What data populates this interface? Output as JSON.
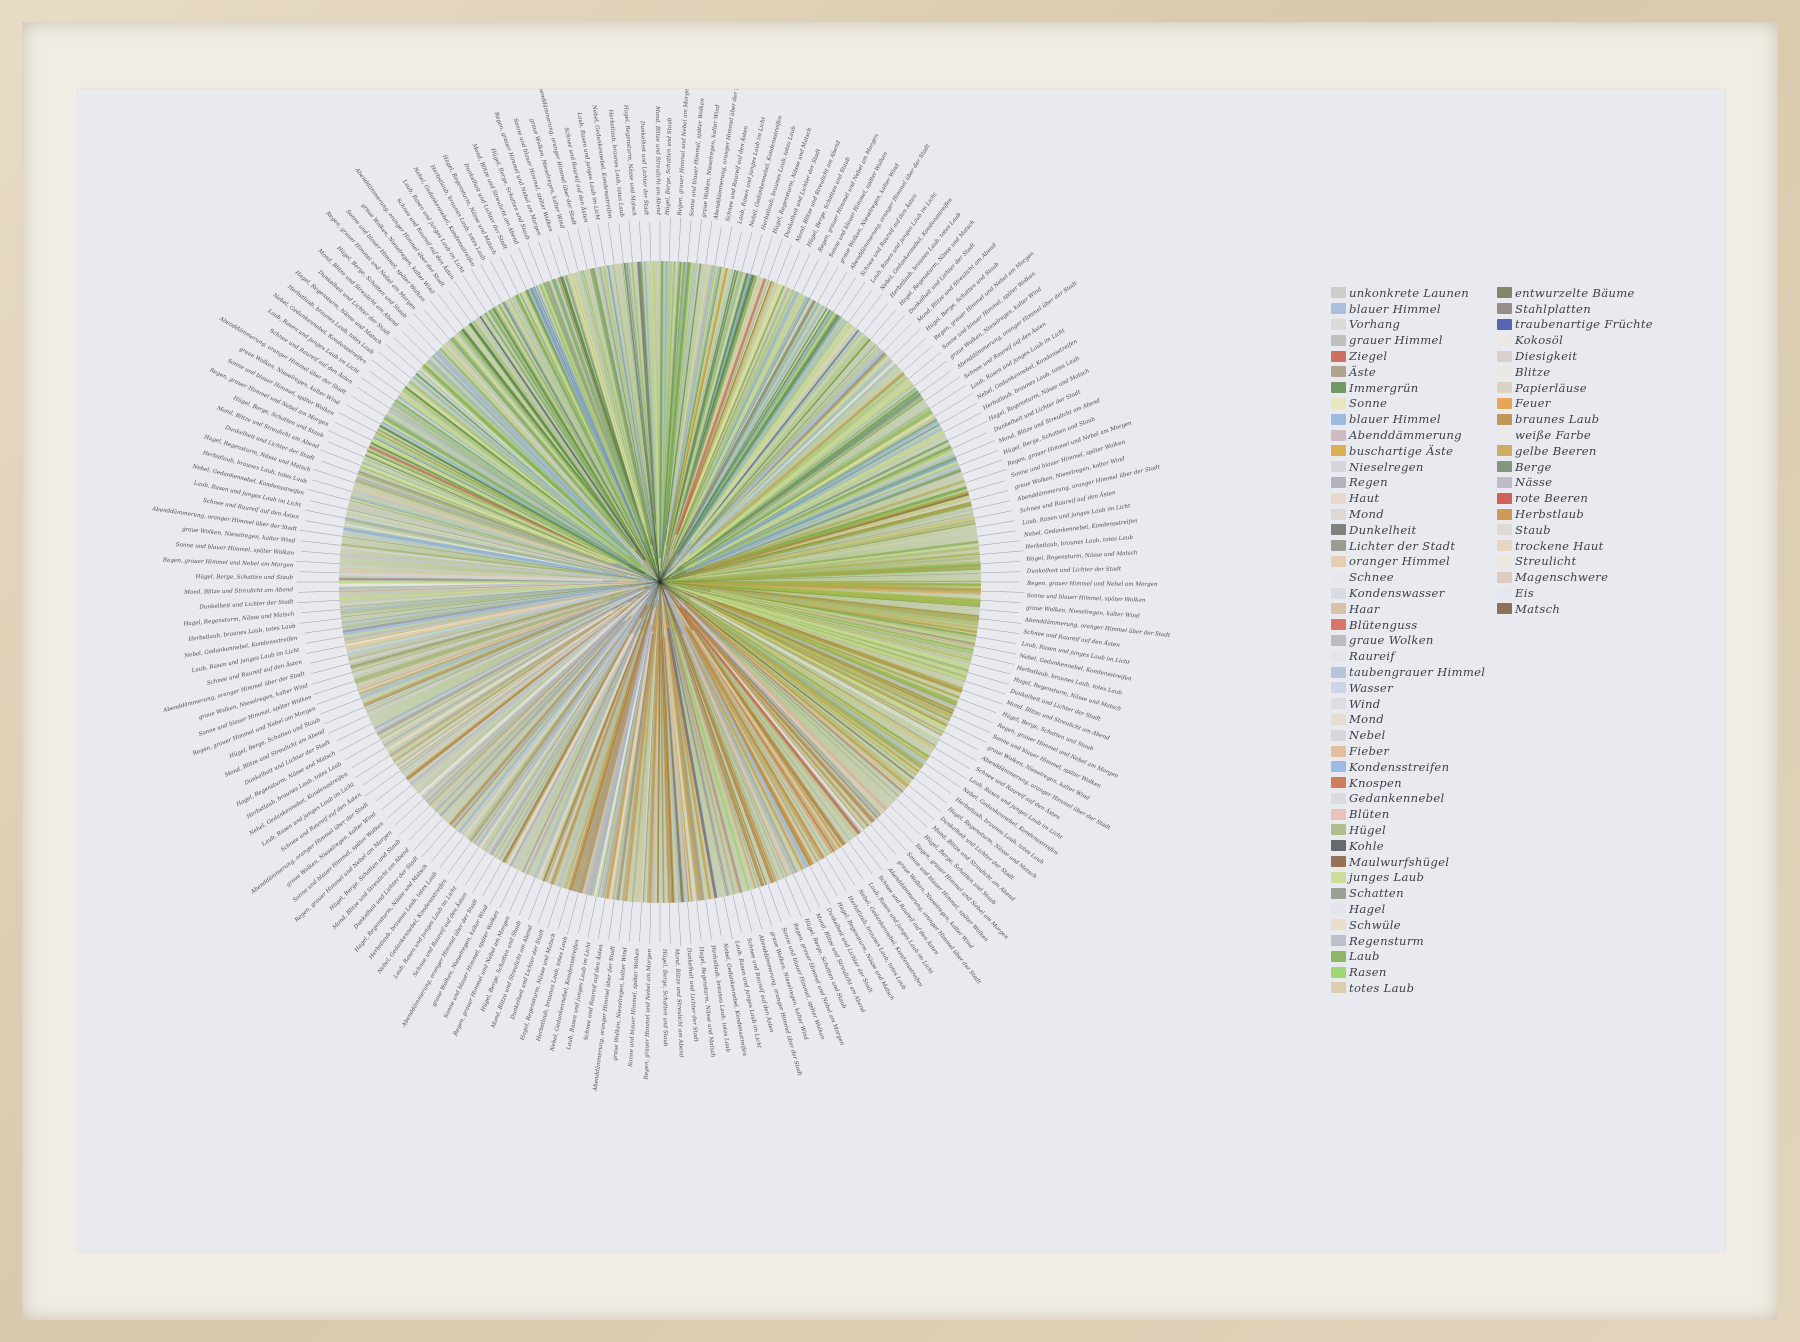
{
  "legend": {
    "column1": [
      {
        "label": "unkonkrete Launen",
        "color": "#c9c7c2"
      },
      {
        "label": "blauer Himmel",
        "color": "#9fb8d6"
      },
      {
        "label": "Vorhang",
        "color": "#d9d7d4"
      },
      {
        "label": "grauer Himmel",
        "color": "#b9b7b4"
      },
      {
        "label": "Ziegel",
        "color": "#c55a4a"
      },
      {
        "label": "Äste",
        "color": "#a6987e"
      },
      {
        "label": "Immergrün",
        "color": "#5d8a4c"
      },
      {
        "label": "Sonne",
        "color": "#e9e4b6"
      },
      {
        "label": "blauer Himmel",
        "color": "#8fb3de"
      },
      {
        "label": "Abenddämmerung",
        "color": "#c8b4b8"
      },
      {
        "label": "buschartige Äste",
        "color": "#d8a63a"
      },
      {
        "label": "Nieselregen",
        "color": "#d2d2d6"
      },
      {
        "label": "Regen",
        "color": "#a9a9b3"
      },
      {
        "label": "Haut",
        "color": "#e8d6c4"
      },
      {
        "label": "Mond",
        "color": "#d9d6cc"
      },
      {
        "label": "Dunkelheit",
        "color": "#6b7068"
      },
      {
        "label": "Lichter der Stadt",
        "color": "#8a8f7e"
      },
      {
        "label": "oranger Himmel",
        "color": "#e8c9a6"
      },
      {
        "label": "Schnee",
        "color": "#e6e8ec"
      },
      {
        "label": "Kondenswasser",
        "color": "#d6d8df"
      },
      {
        "label": "Haar",
        "color": "#d7b79c"
      },
      {
        "label": "Blütenguss",
        "color": "#d26050"
      },
      {
        "label": "graue Wolken",
        "color": "#b2b4bb"
      },
      {
        "label": "Raureif",
        "color": "#e2e4ea"
      },
      {
        "label": "taubengrauer Himmel",
        "color": "#aebed6"
      },
      {
        "label": "Wasser",
        "color": "#c7d2e6"
      },
      {
        "label": "Wind",
        "color": "#d9dae0"
      },
      {
        "label": "Mond",
        "color": "#e2dccb"
      },
      {
        "label": "Nebel",
        "color": "#d4d4d8"
      },
      {
        "label": "Fieber",
        "color": "#e1b98e"
      },
      {
        "label": "Kondensstreifen",
        "color": "#8fb2e2"
      },
      {
        "label": "Knospen",
        "color": "#c86a3f"
      },
      {
        "label": "Gedankennebel",
        "color": "#d7d8de"
      },
      {
        "label": "Blüten",
        "color": "#eab9b0"
      },
      {
        "label": "Hügel",
        "color": "#a8b57c"
      },
      {
        "label": "Kohle",
        "color": "#4d5352"
      },
      {
        "label": "Maulwurfshügel",
        "color": "#8a5d3b"
      },
      {
        "label": "junges Laub",
        "color": "#c6da8a"
      },
      {
        "label": "Schatten",
        "color": "#8b9384"
      },
      {
        "label": "Hagel",
        "color": "#e3e5ea"
      },
      {
        "label": "Schwüle",
        "color": "#e9dcc2"
      },
      {
        "label": "Regensturm",
        "color": "#b4b8c6"
      },
      {
        "label": "Laub",
        "color": "#7fae4c"
      },
      {
        "label": "Rasen",
        "color": "#8ed65a"
      },
      {
        "label": "totes Laub",
        "color": "#d8c8a2"
      }
    ],
    "column2": [
      {
        "label": "entwurzelte Bäume",
        "color": "#6f7550"
      },
      {
        "label": "Stahlplatten",
        "color": "#8a7d74"
      },
      {
        "label": "traubenartige Früchte",
        "color": "#3c4ea8"
      },
      {
        "label": "Kokosöl",
        "color": "#ece7dd"
      },
      {
        "label": "Diesigkeit",
        "color": "#d6ccc0"
      },
      {
        "label": "Blitze",
        "color": "#e8e7e0"
      },
      {
        "label": "Papierläuse",
        "color": "#d9cdb8"
      },
      {
        "label": "Feuer",
        "color": "#e69a3c"
      },
      {
        "label": "braunes Laub",
        "color": "#b58a3e"
      },
      {
        "label": "weiße Farbe",
        "color": "#ebeae6"
      },
      {
        "label": "gelbe Beeren",
        "color": "#c7a24a"
      },
      {
        "label": "Berge",
        "color": "#6f8a6a"
      },
      {
        "label": "Nässe",
        "color": "#b8b2c0"
      },
      {
        "label": "rote Beeren",
        "color": "#c94a3d"
      },
      {
        "label": "Herbstlaub",
        "color": "#c9893c"
      },
      {
        "label": "Staub",
        "color": "#ddd8cf"
      },
      {
        "label": "trockene Haut",
        "color": "#e6d2bc"
      },
      {
        "label": "Streulicht",
        "color": "#ece8d8"
      },
      {
        "label": "Magenschwere",
        "color": "#d9c7b4"
      },
      {
        "label": "Eis",
        "color": "#e2e6ee"
      },
      {
        "label": "Matsch",
        "color": "#7d5c3e"
      }
    ]
  },
  "ring_notes": [
    "Regen, grauer Himmel und Nebel am Morgen",
    "Sonne und blauer Himmel, später Wolken",
    "graue Wolken, Nieselregen, kalter Wind",
    "Abenddämmerung, oranger Himmel über der Stadt",
    "Schnee und Raureif auf den Ästen",
    "Laub, Rasen und junges Laub im Licht",
    "Nebel, Gedankennebel, Kondensstreifen",
    "Herbstlaub, braunes Laub, totes Laub",
    "Hagel, Regensturm, Nässe und Matsch",
    "Dunkelheit und Lichter der Stadt",
    "Mond, Blitze und Streulicht am Abend",
    "Hügel, Berge, Schatten und Staub"
  ]
}
